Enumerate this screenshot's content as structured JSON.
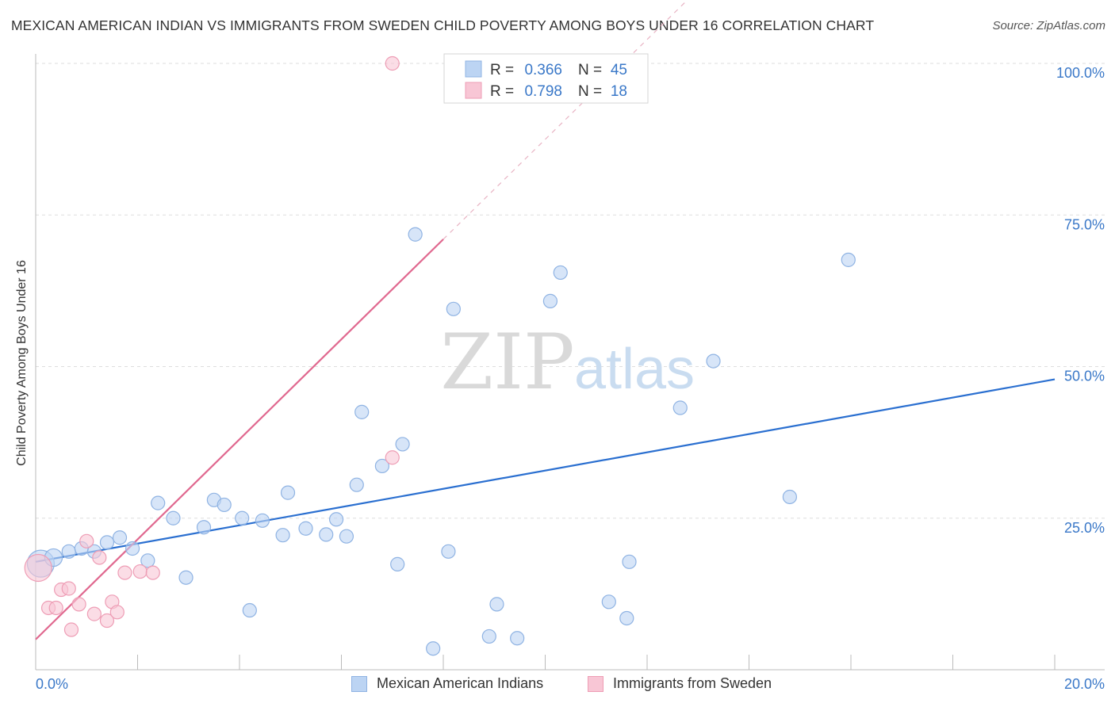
{
  "title": "MEXICAN AMERICAN INDIAN VS IMMIGRANTS FROM SWEDEN CHILD POVERTY AMONG BOYS UNDER 16 CORRELATION CHART",
  "source": "Source: ZipAtlas.com",
  "watermark": {
    "zip": "ZIP",
    "atlas": "atlas"
  },
  "colors": {
    "blue_fill": "#bcd4f3",
    "blue_stroke": "#8fb3e3",
    "blue_line": "#2a6fd0",
    "pink_fill": "#f8c6d5",
    "pink_stroke": "#ee9db5",
    "pink_line": "#e0688f",
    "tick_label": "#3a78c8",
    "grid": "#dddddd"
  },
  "legend": {
    "rows": [
      {
        "r_label": "R =",
        "r_value": "0.366",
        "n_label": "N =",
        "n_value": "45",
        "series": "blue"
      },
      {
        "r_label": "R =",
        "r_value": "0.798",
        "n_label": "N =",
        "n_value": "18",
        "series": "pink"
      }
    ]
  },
  "chart_data": {
    "type": "scatter",
    "title": "MEXICAN AMERICAN INDIAN VS IMMIGRANTS FROM SWEDEN CHILD POVERTY AMONG BOYS UNDER 16 CORRELATION CHART",
    "xlabel": "",
    "ylabel": "Child Poverty Among Boys Under 16",
    "xlim": [
      0,
      20
    ],
    "ylim": [
      0,
      100
    ],
    "x_tick_labels": {
      "left": "0.0%",
      "right": "20.0%"
    },
    "y_ticks": [
      {
        "value": 25,
        "label": "25.0%"
      },
      {
        "value": 50,
        "label": "50.0%"
      },
      {
        "value": 75,
        "label": "75.0%"
      },
      {
        "value": 100,
        "label": "100.0%"
      }
    ],
    "series": [
      {
        "name": "Mexican American Indians",
        "color": "blue",
        "R": 0.366,
        "N": 45,
        "trendline": {
          "x": [
            0,
            20
          ],
          "y": [
            17.8,
            47.9
          ]
        },
        "points": [
          [
            0.1,
            17.5,
            2
          ],
          [
            0.35,
            18.5,
            1.3
          ],
          [
            0.65,
            19.5,
            1
          ],
          [
            0.9,
            20,
            1
          ],
          [
            1.15,
            19.5,
            1
          ],
          [
            1.4,
            21,
            1
          ],
          [
            1.65,
            21.8,
            1
          ],
          [
            1.9,
            20,
            1
          ],
          [
            2.2,
            18,
            1
          ],
          [
            2.4,
            27.5,
            1
          ],
          [
            2.7,
            25,
            1
          ],
          [
            2.95,
            15.2,
            1
          ],
          [
            3.3,
            23.5,
            1
          ],
          [
            3.5,
            28,
            1
          ],
          [
            3.7,
            27.2,
            1
          ],
          [
            4.05,
            25,
            1
          ],
          [
            4.2,
            9.8,
            1
          ],
          [
            4.45,
            24.6,
            1
          ],
          [
            4.85,
            22.2,
            1
          ],
          [
            4.95,
            29.2,
            1
          ],
          [
            5.3,
            23.3,
            1
          ],
          [
            5.7,
            22.3,
            1
          ],
          [
            5.9,
            24.8,
            1
          ],
          [
            6.1,
            22.0,
            1
          ],
          [
            6.3,
            30.5,
            1
          ],
          [
            6.4,
            42.5,
            1
          ],
          [
            6.8,
            33.6,
            1
          ],
          [
            7.1,
            17.4,
            1
          ],
          [
            7.2,
            37.2,
            1
          ],
          [
            7.45,
            71.8,
            1
          ],
          [
            7.8,
            3.5,
            1
          ],
          [
            8.1,
            19.5,
            1
          ],
          [
            8.2,
            59.5,
            1
          ],
          [
            8.9,
            5.5,
            1
          ],
          [
            9.05,
            10.8,
            1
          ],
          [
            9.45,
            5.2,
            1
          ],
          [
            10.1,
            60.8,
            1
          ],
          [
            10.3,
            65.5,
            1
          ],
          [
            11.25,
            11.2,
            1
          ],
          [
            11.6,
            8.5,
            1
          ],
          [
            11.65,
            17.8,
            1
          ],
          [
            12.65,
            43.2,
            1
          ],
          [
            13.3,
            50.9,
            1
          ],
          [
            14.8,
            28.5,
            1
          ],
          [
            15.95,
            67.6,
            1
          ]
        ]
      },
      {
        "name": "Immigrants from Sweden",
        "color": "pink",
        "R": 0.798,
        "N": 18,
        "trendline": {
          "x": [
            0,
            8.0
          ],
          "y": [
            5.0,
            71.0
          ],
          "dashed_x": [
            8.0,
            14.8
          ],
          "dashed_y": [
            71.0,
            127.0
          ]
        },
        "points": [
          [
            0.05,
            16.8,
            2
          ],
          [
            0.25,
            10.2,
            1
          ],
          [
            0.4,
            10.2,
            1
          ],
          [
            0.5,
            13.2,
            1
          ],
          [
            0.65,
            13.4,
            1
          ],
          [
            0.7,
            6.6,
            1
          ],
          [
            0.85,
            10.8,
            1
          ],
          [
            1.0,
            21.2,
            1
          ],
          [
            1.15,
            9.2,
            1
          ],
          [
            1.25,
            18.5,
            1
          ],
          [
            1.4,
            8.1,
            1
          ],
          [
            1.5,
            11.2,
            1
          ],
          [
            1.6,
            9.5,
            1
          ],
          [
            1.75,
            16.0,
            1
          ],
          [
            2.05,
            16.2,
            1
          ],
          [
            2.3,
            16.0,
            1
          ],
          [
            7.0,
            35.0,
            1
          ],
          [
            7.0,
            100.0,
            1
          ]
        ]
      }
    ]
  }
}
